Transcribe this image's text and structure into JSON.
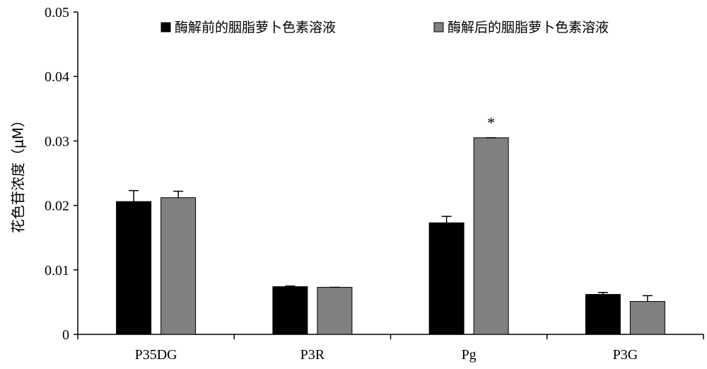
{
  "chart_data": {
    "type": "bar",
    "title": "",
    "xlabel": "",
    "ylabel": "花色苷浓度（μM）",
    "ylim": [
      0,
      0.05
    ],
    "yticks": [
      0,
      0.01,
      0.02,
      0.03,
      0.04,
      0.05
    ],
    "ytick_labels": [
      "0",
      "0.01",
      "0.02",
      "0.03",
      "0.04",
      "0.05"
    ],
    "categories": [
      "P35DG",
      "P3R",
      "Pg",
      "P3G"
    ],
    "series": [
      {
        "name": "酶解前的胭脂萝卜色素溶液",
        "color": "#000000",
        "values": [
          0.0206,
          0.0074,
          0.0173,
          0.0062
        ],
        "errors": [
          0.0017,
          0.0001,
          0.001,
          0.0003
        ]
      },
      {
        "name": "酶解后的胭脂萝卜色素溶液",
        "color": "#808080",
        "values": [
          0.0212,
          0.0073,
          0.0305,
          0.0051
        ],
        "errors": [
          0.001,
          0.0,
          0.0,
          0.0009
        ]
      }
    ],
    "annotations": [
      {
        "text": "*",
        "category": "Pg",
        "series": 1
      }
    ],
    "grid": false,
    "legend_position": "top"
  }
}
